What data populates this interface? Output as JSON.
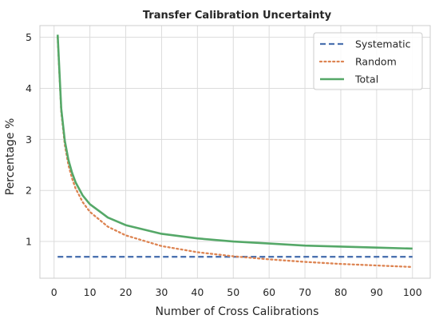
{
  "chart_data": {
    "type": "line",
    "title": "Transfer Calibration Uncertainty",
    "xlabel": "Number of Cross Calibrations",
    "ylabel": "Percentage %",
    "xlim": [
      -3.95,
      104.95
    ],
    "ylim": [
      0.28,
      5.23
    ],
    "xticks": [
      0,
      10,
      20,
      30,
      40,
      50,
      60,
      70,
      80,
      90,
      100
    ],
    "yticks": [
      1,
      2,
      3,
      4,
      5
    ],
    "grid": true,
    "legend_position": "top-right",
    "series": [
      {
        "name": "Systematic",
        "color": "#4c72b0",
        "style": "dashed",
        "x": [
          1,
          2,
          3,
          4,
          5,
          6,
          8,
          10,
          15,
          20,
          30,
          40,
          50,
          60,
          70,
          80,
          90,
          100
        ],
        "y": [
          0.7,
          0.7,
          0.7,
          0.7,
          0.7,
          0.7,
          0.7,
          0.7,
          0.7,
          0.7,
          0.7,
          0.7,
          0.7,
          0.7,
          0.7,
          0.7,
          0.7,
          0.7
        ]
      },
      {
        "name": "Random",
        "color": "#dd8452",
        "style": "dotted",
        "x": [
          1,
          2,
          3,
          4,
          5,
          6,
          8,
          10,
          15,
          20,
          30,
          40,
          50,
          60,
          70,
          80,
          90,
          100
        ],
        "y": [
          5.0,
          3.54,
          2.89,
          2.5,
          2.24,
          2.04,
          1.77,
          1.58,
          1.29,
          1.12,
          0.91,
          0.79,
          0.71,
          0.65,
          0.6,
          0.56,
          0.53,
          0.5
        ]
      },
      {
        "name": "Total",
        "color": "#55a868",
        "style": "solid",
        "x": [
          1,
          2,
          3,
          4,
          5,
          6,
          8,
          10,
          15,
          20,
          30,
          40,
          50,
          60,
          70,
          80,
          90,
          100
        ],
        "y": [
          5.05,
          3.6,
          2.97,
          2.6,
          2.35,
          2.16,
          1.9,
          1.73,
          1.47,
          1.32,
          1.15,
          1.06,
          1.0,
          0.96,
          0.92,
          0.9,
          0.88,
          0.86
        ]
      }
    ]
  }
}
